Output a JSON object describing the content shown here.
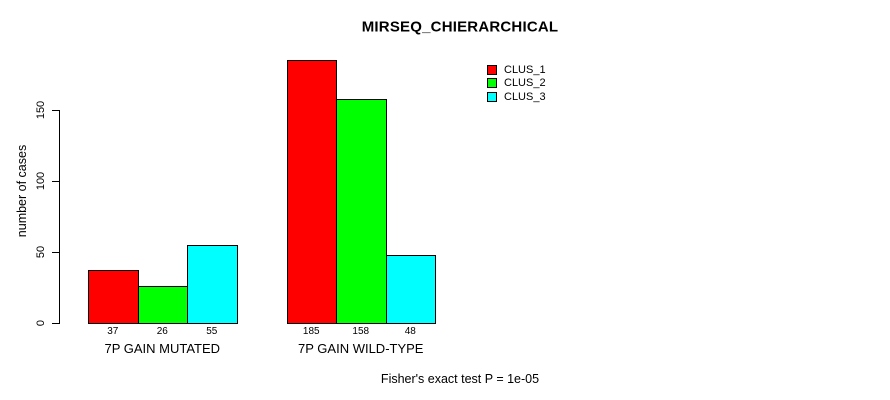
{
  "chart_data": {
    "type": "bar",
    "title": "MIRSEQ_CHIERARCHICAL",
    "ylabel": "number of cases",
    "xlabel": "",
    "categories": [
      "7P GAIN MUTATED",
      "7P GAIN WILD-TYPE"
    ],
    "series": [
      {
        "name": "CLUS_1",
        "color": "#ff0000",
        "values": [
          37,
          185
        ]
      },
      {
        "name": "CLUS_2",
        "color": "#00ff00",
        "values": [
          26,
          158
        ]
      },
      {
        "name": "CLUS_3",
        "color": "#00ffff",
        "values": [
          55,
          48
        ]
      }
    ],
    "bar_value_labels": [
      [
        37,
        26,
        55
      ],
      [
        185,
        158,
        48
      ]
    ],
    "yticks": [
      0,
      50,
      100,
      150
    ],
    "ylim": [
      0,
      187
    ],
    "grid": false,
    "legend_position": "top-right",
    "bar_border_color": "#000000",
    "axis_color": "#000000",
    "background": "#ffffff",
    "footnote": "Fisher's exact test P = 1e-05"
  }
}
